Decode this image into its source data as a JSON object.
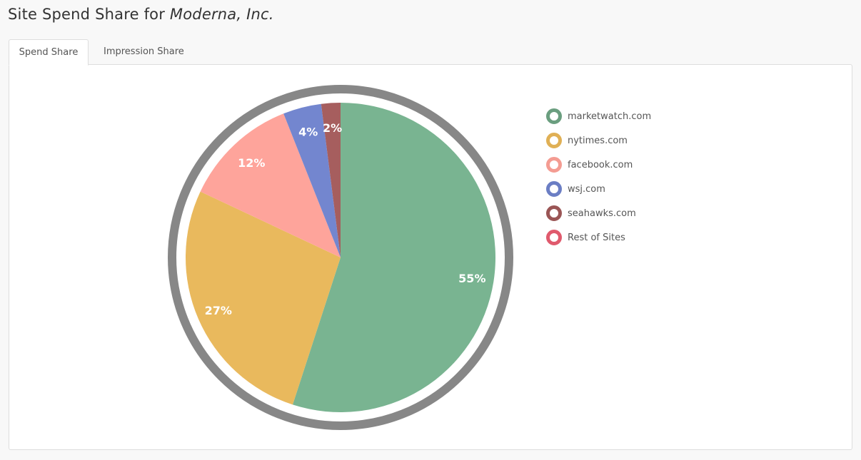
{
  "header": {
    "title_prefix": "Site Spend Share for ",
    "company": "Moderna, Inc."
  },
  "tabs": [
    {
      "label": "Spend Share",
      "active": true
    },
    {
      "label": "Impression Share",
      "active": false
    }
  ],
  "colors": {
    "ring": "#878787",
    "marketwatch": "#79b491",
    "nytimes": "#e9b95d",
    "facebook": "#fea49b",
    "wsj": "#7386cf",
    "seahawks": "#a65e5e",
    "rest": "#e05a6d"
  },
  "chart_data": {
    "type": "pie",
    "slices": [
      {
        "name": "marketwatch.com",
        "value": 55,
        "label": "55%",
        "color": "#79b491"
      },
      {
        "name": "nytimes.com",
        "value": 27,
        "label": "27%",
        "color": "#e9b95d"
      },
      {
        "name": "facebook.com",
        "value": 12,
        "label": "12%",
        "color": "#fea49b"
      },
      {
        "name": "wsj.com",
        "value": 4,
        "label": "4%",
        "color": "#7386cf"
      },
      {
        "name": "seahawks.com",
        "value": 2,
        "label": "2%",
        "color": "#a65e5e"
      }
    ],
    "legend": [
      {
        "name": "marketwatch.com",
        "color": "#6a9e7f"
      },
      {
        "name": "nytimes.com",
        "color": "#e0b055"
      },
      {
        "name": "facebook.com",
        "color": "#f49c92"
      },
      {
        "name": "wsj.com",
        "color": "#6b7ec4"
      },
      {
        "name": "seahawks.com",
        "color": "#9a5555"
      },
      {
        "name": "Rest of Sites",
        "color": "#e05a6d"
      }
    ],
    "legend_placement": "right"
  }
}
